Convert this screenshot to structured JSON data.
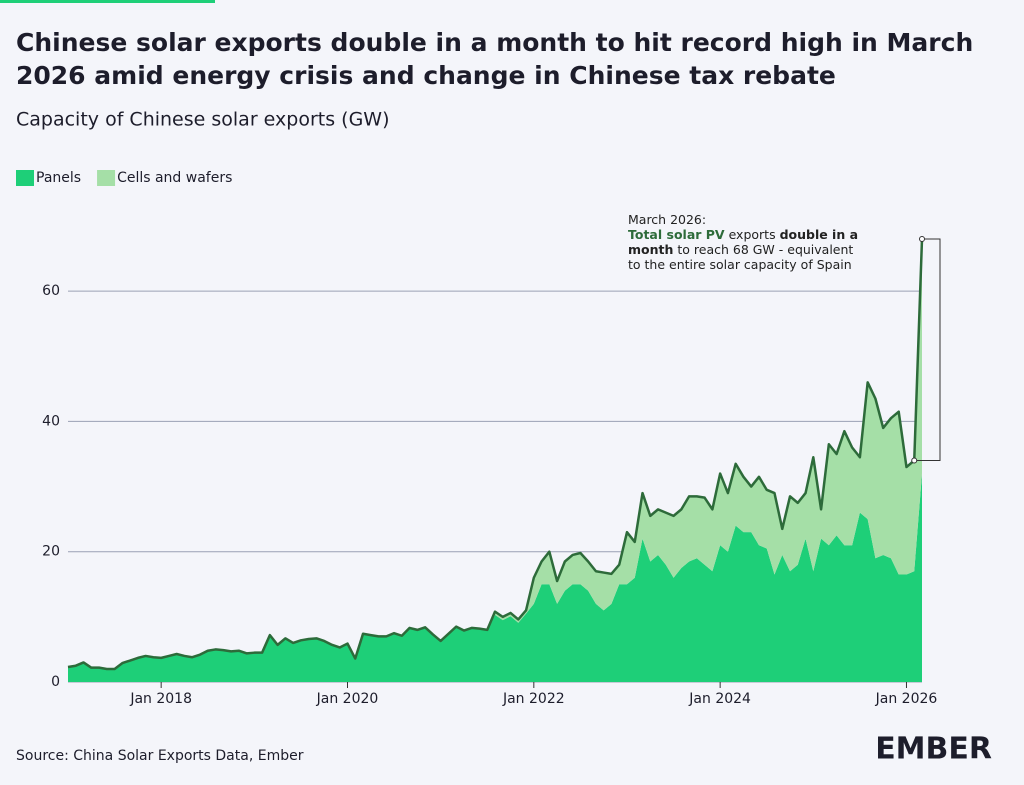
{
  "chart_data": {
    "type": "stacked-area",
    "title_lines": [
      "Chinese solar exports double in a month to hit record high in March",
      "2026 amid energy crisis and change in Chinese tax rebate"
    ],
    "subtitle": "Capacity of Chinese solar exports (GW)",
    "source": "Source: China Solar Exports Data, Ember",
    "logo": "EMBER",
    "annotation": {
      "title": "March 2026:",
      "lines": [
        [
          {
            "text": "Total solar PV"
          },
          {
            "text": " exports "
          },
          {
            "text": "double in a"
          }
        ],
        [
          {
            "text": "month"
          },
          {
            "text": " to reach 68 GW - equivalent"
          }
        ],
        [
          {
            "text": "to the entire solar capacity of Spain"
          }
        ]
      ]
    },
    "x": [
      "2017-01",
      "2017-02",
      "2017-03",
      "2017-04",
      "2017-05",
      "2017-06",
      "2017-07",
      "2017-08",
      "2017-09",
      "2017-10",
      "2017-11",
      "2017-12",
      "2018-01",
      "2018-02",
      "2018-03",
      "2018-04",
      "2018-05",
      "2018-06",
      "2018-07",
      "2018-08",
      "2018-09",
      "2018-10",
      "2018-11",
      "2018-12",
      "2019-01",
      "2019-02",
      "2019-03",
      "2019-04",
      "2019-05",
      "2019-06",
      "2019-07",
      "2019-08",
      "2019-09",
      "2019-10",
      "2019-11",
      "2019-12",
      "2020-01",
      "2020-02",
      "2020-03",
      "2020-04",
      "2020-05",
      "2020-06",
      "2020-07",
      "2020-08",
      "2020-09",
      "2020-10",
      "2020-11",
      "2020-12",
      "2021-01",
      "2021-02",
      "2021-03",
      "2021-04",
      "2021-05",
      "2021-06",
      "2021-07",
      "2021-08",
      "2021-09",
      "2021-10",
      "2021-11",
      "2021-12",
      "2022-01",
      "2022-02",
      "2022-03",
      "2022-04",
      "2022-05",
      "2022-06",
      "2022-07",
      "2022-08",
      "2022-09",
      "2022-10",
      "2022-11",
      "2022-12",
      "2023-01",
      "2023-02",
      "2023-03",
      "2023-04",
      "2023-05",
      "2023-06",
      "2023-07",
      "2023-08",
      "2023-09",
      "2023-10",
      "2023-11",
      "2023-12",
      "2024-01",
      "2024-02",
      "2024-03",
      "2024-04",
      "2024-05",
      "2024-06",
      "2024-07",
      "2024-08",
      "2024-09",
      "2024-10",
      "2024-11",
      "2024-12",
      "2025-01",
      "2025-02",
      "2025-03",
      "2025-04",
      "2025-05",
      "2025-06",
      "2025-07",
      "2025-08",
      "2025-09",
      "2025-10",
      "2025-11",
      "2025-12",
      "2026-01",
      "2026-02",
      "2026-03"
    ],
    "series": [
      {
        "name": "Panels",
        "color": "#1ecf78",
        "values": [
          2.3,
          2.5,
          3.0,
          2.2,
          2.2,
          2.0,
          2.0,
          2.9,
          3.3,
          3.7,
          4.0,
          3.8,
          3.7,
          4.0,
          4.3,
          4.0,
          3.8,
          4.2,
          4.8,
          5.0,
          4.9,
          4.7,
          4.8,
          4.4,
          4.5,
          4.5,
          7.2,
          5.7,
          6.7,
          6.0,
          6.4,
          6.6,
          6.7,
          6.3,
          5.7,
          5.3,
          5.9,
          3.6,
          7.4,
          7.2,
          7.0,
          7.0,
          7.5,
          7.1,
          8.3,
          8.0,
          8.4,
          7.3,
          6.3,
          7.4,
          8.5,
          7.9,
          8.3,
          8.2,
          8.0,
          10.3,
          9.5,
          10.1,
          9.1,
          10.5,
          12,
          15,
          15,
          12,
          14,
          15,
          15,
          14,
          12,
          11,
          12,
          15,
          15,
          16,
          22,
          18.5,
          19.5,
          18,
          16,
          17.5,
          18.5,
          19,
          18,
          17,
          21,
          20,
          24,
          23,
          23,
          21,
          20.5,
          16.5,
          19.5,
          17,
          18,
          22,
          17,
          22,
          21,
          22.5,
          21,
          21,
          26,
          25,
          19,
          19.5,
          19,
          16.5,
          16.5,
          17,
          32
        ]
      },
      {
        "name": "Cells and wafers",
        "color": "#a5dfa7",
        "values": [
          0,
          0,
          0,
          0,
          0,
          0,
          0,
          0,
          0,
          0,
          0,
          0,
          0,
          0,
          0,
          0,
          0,
          0,
          0,
          0,
          0,
          0,
          0,
          0,
          0,
          0,
          0,
          0,
          0,
          0,
          0,
          0,
          0,
          0,
          0,
          0,
          0,
          0,
          0,
          0,
          0,
          0,
          0,
          0,
          0,
          0,
          0,
          0,
          0,
          0,
          0,
          0,
          0,
          0,
          0,
          0.5,
          0.5,
          0.5,
          0.5,
          0.5,
          4,
          3.5,
          5,
          3.5,
          4.5,
          4.5,
          4.8,
          4.5,
          5,
          5.8,
          4.6,
          3,
          8,
          5.5,
          7,
          7,
          7,
          8,
          9.5,
          9,
          10,
          9.5,
          10.3,
          9.5,
          11,
          9,
          9.5,
          8.5,
          7,
          10.5,
          9,
          12.5,
          4,
          11.5,
          9.5,
          7,
          17.5,
          4.5,
          15.5,
          12.5,
          17.5,
          15,
          8.5,
          21,
          24.5,
          19.5,
          21.5,
          25,
          16.5,
          17,
          36
        ]
      }
    ],
    "line_color": "#2d6b3a",
    "xlim": [
      "2017-01",
      "2026-03"
    ],
    "xticks": [
      {
        "value": "2018-01",
        "label": "Jan 2018"
      },
      {
        "value": "2020-01",
        "label": "Jan 2020"
      },
      {
        "value": "2022-01",
        "label": "Jan 2022"
      },
      {
        "value": "2024-01",
        "label": "Jan 2024"
      },
      {
        "value": "2026-01",
        "label": "Jan 2026"
      }
    ],
    "ylim": [
      0,
      70
    ],
    "yticks": [
      0,
      20,
      40,
      60
    ],
    "grid": true,
    "legend": "top-left"
  }
}
